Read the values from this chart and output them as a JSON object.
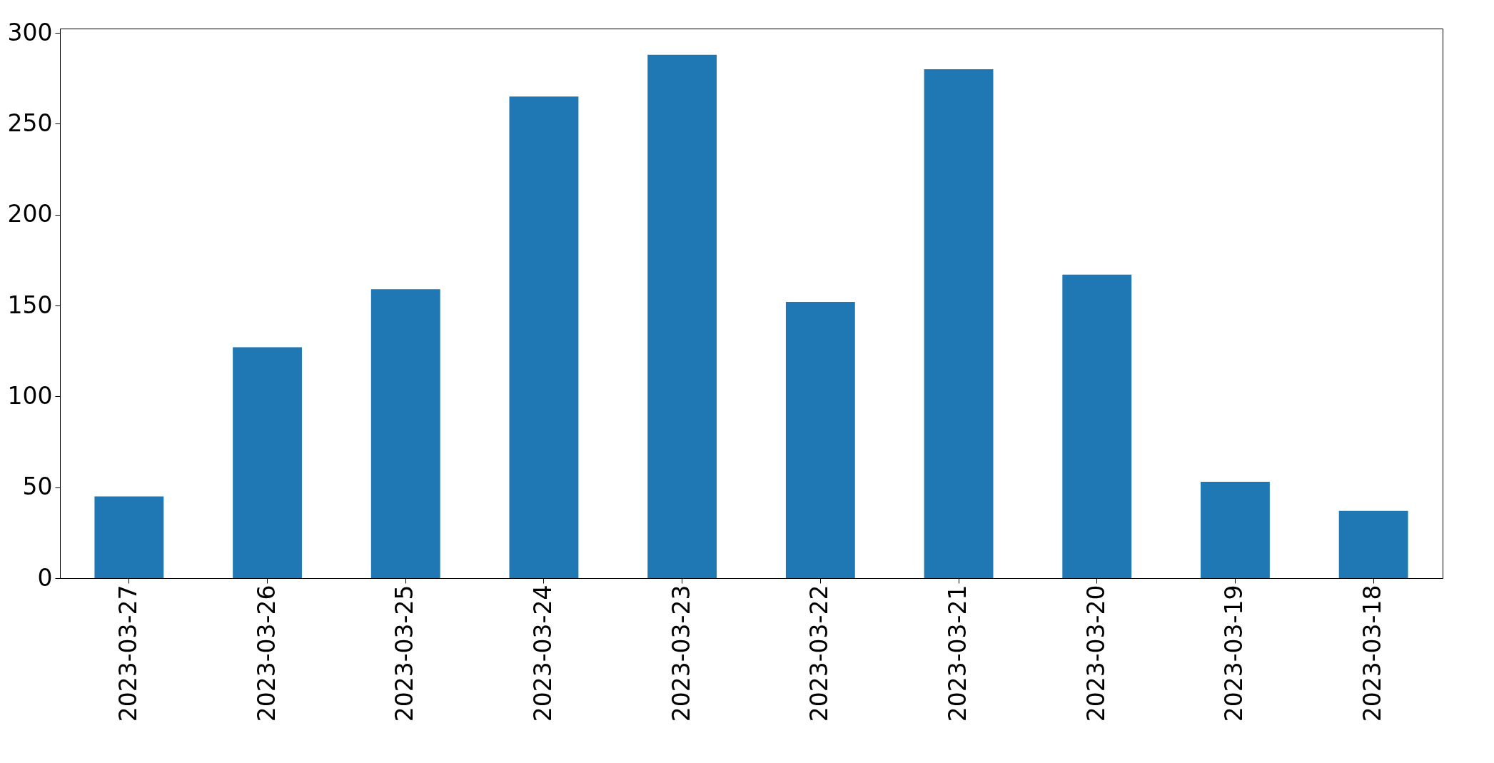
{
  "chart_data": {
    "type": "bar",
    "categories": [
      "2023-03-27",
      "2023-03-26",
      "2023-03-25",
      "2023-03-24",
      "2023-03-23",
      "2023-03-22",
      "2023-03-21",
      "2023-03-20",
      "2023-03-19",
      "2023-03-18"
    ],
    "values": [
      45,
      127,
      159,
      265,
      288,
      152,
      280,
      167,
      53,
      37
    ],
    "color": "#1f77b4",
    "ylim": [
      0,
      302.4
    ],
    "yticks": [
      0,
      50,
      100,
      150,
      200,
      250,
      300
    ],
    "grid": false,
    "legend": false
  }
}
